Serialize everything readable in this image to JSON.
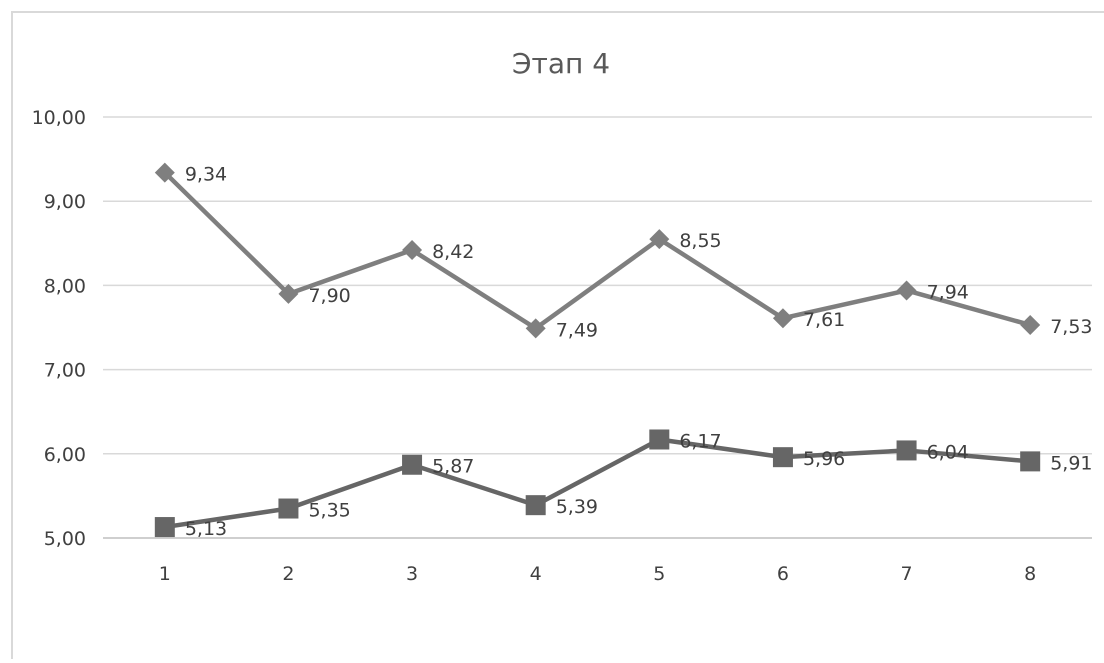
{
  "chart_data": {
    "type": "line",
    "title": "Этап 4",
    "xlabel": "",
    "ylabel": "",
    "categories": [
      "1",
      "2",
      "3",
      "4",
      "5",
      "6",
      "7",
      "8"
    ],
    "ylim": [
      5.0,
      10.0
    ],
    "yticks": [
      5.0,
      6.0,
      7.0,
      8.0,
      9.0,
      10.0
    ],
    "ytick_labels": [
      "5,00",
      "6,00",
      "7,00",
      "8,00",
      "9,00",
      "10,00"
    ],
    "grid": true,
    "legend": "none",
    "series": [
      {
        "marker": "diamond",
        "color": "#7f7f7f",
        "values": [
          9.34,
          7.9,
          8.42,
          7.49,
          8.55,
          7.61,
          7.94,
          7.53
        ],
        "labels": [
          "9,34",
          "7,90",
          "8,42",
          "7,49",
          "8,55",
          "7,61",
          "7,94",
          "7,53"
        ]
      },
      {
        "marker": "square",
        "color": "#666666",
        "values": [
          5.13,
          5.35,
          5.87,
          5.39,
          6.17,
          5.96,
          6.04,
          5.91
        ],
        "labels": [
          "5,13",
          "5,35",
          "5,87",
          "5,39",
          "6,17",
          "5,96",
          "6,04",
          "5,91"
        ]
      }
    ],
    "colors": {
      "grid": "#d9d9d9",
      "axis": "#bfbfbf",
      "text": "#404040",
      "title": "#595959",
      "frame": "#d9d9d9"
    }
  }
}
